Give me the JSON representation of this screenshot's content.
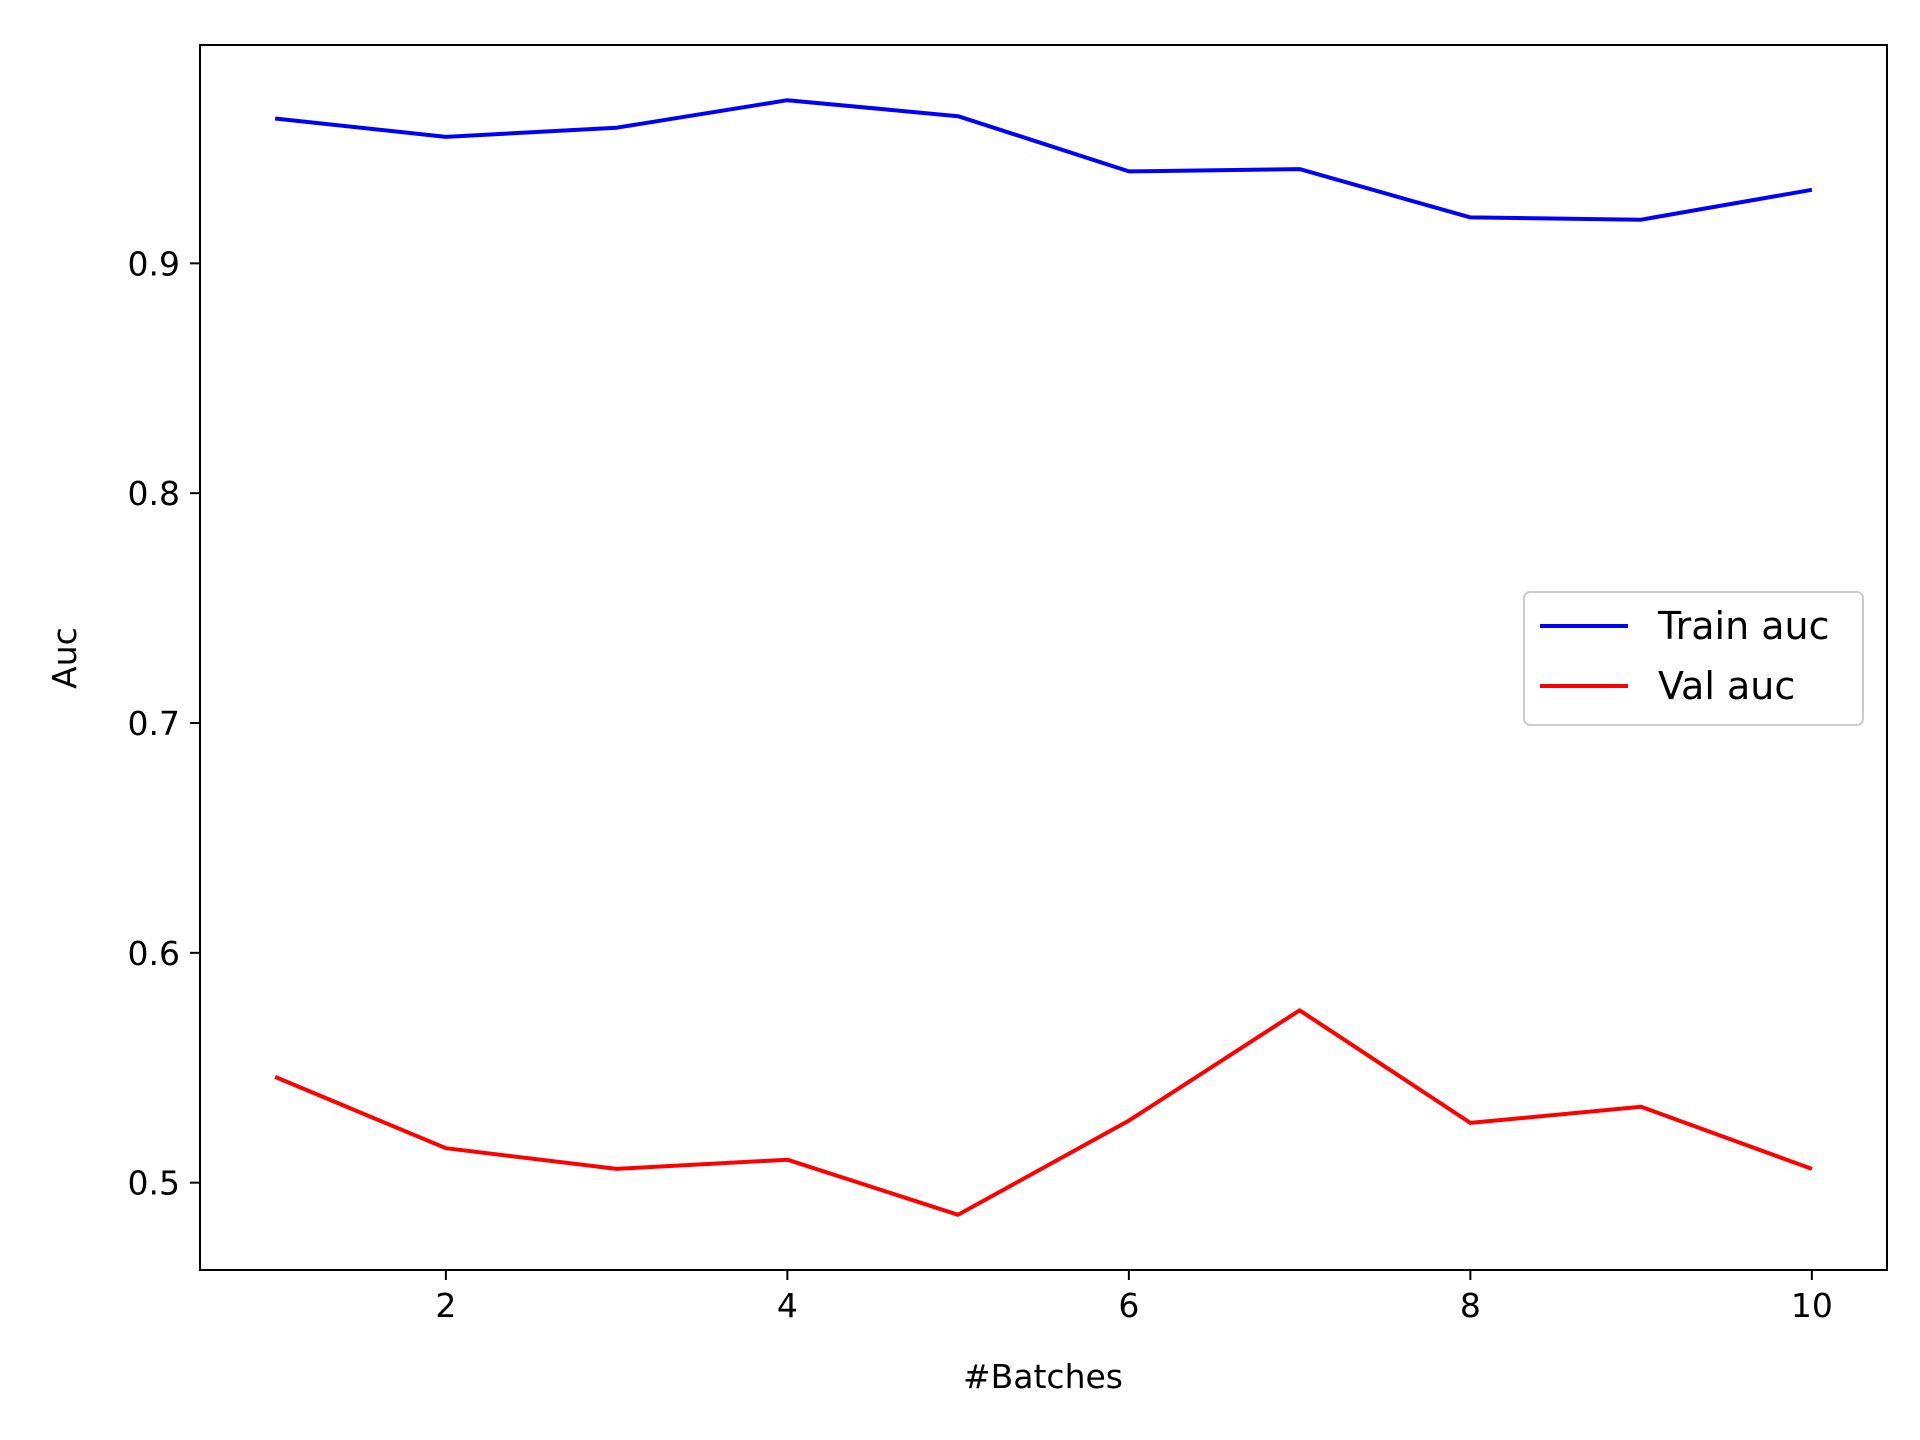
{
  "chart_data": {
    "type": "line",
    "title": "",
    "xlabel": "#Batches",
    "ylabel": "Auc",
    "x": [
      1,
      2,
      3,
      4,
      5,
      6,
      7,
      8,
      9,
      10
    ],
    "xlim": [
      0.56,
      10.44
    ],
    "ylim": [
      0.462,
      0.995
    ],
    "xticks": [
      2,
      4,
      6,
      8,
      10
    ],
    "yticks": [
      0.5,
      0.6,
      0.7,
      0.8,
      0.9
    ],
    "xtick_labels": [
      "2",
      "4",
      "6",
      "8",
      "10"
    ],
    "ytick_labels": [
      "0.5",
      "0.6",
      "0.7",
      "0.8",
      "0.9"
    ],
    "grid": false,
    "legend_position": "center-right",
    "series": [
      {
        "name": "Train auc",
        "color": "#0000ff",
        "values": [
          0.963,
          0.955,
          0.959,
          0.971,
          0.964,
          0.94,
          0.941,
          0.92,
          0.919,
          0.932
        ]
      },
      {
        "name": "Val auc",
        "color": "#ff0000",
        "values": [
          0.546,
          0.515,
          0.506,
          0.51,
          0.486,
          0.527,
          0.575,
          0.526,
          0.533,
          0.506
        ]
      }
    ]
  }
}
